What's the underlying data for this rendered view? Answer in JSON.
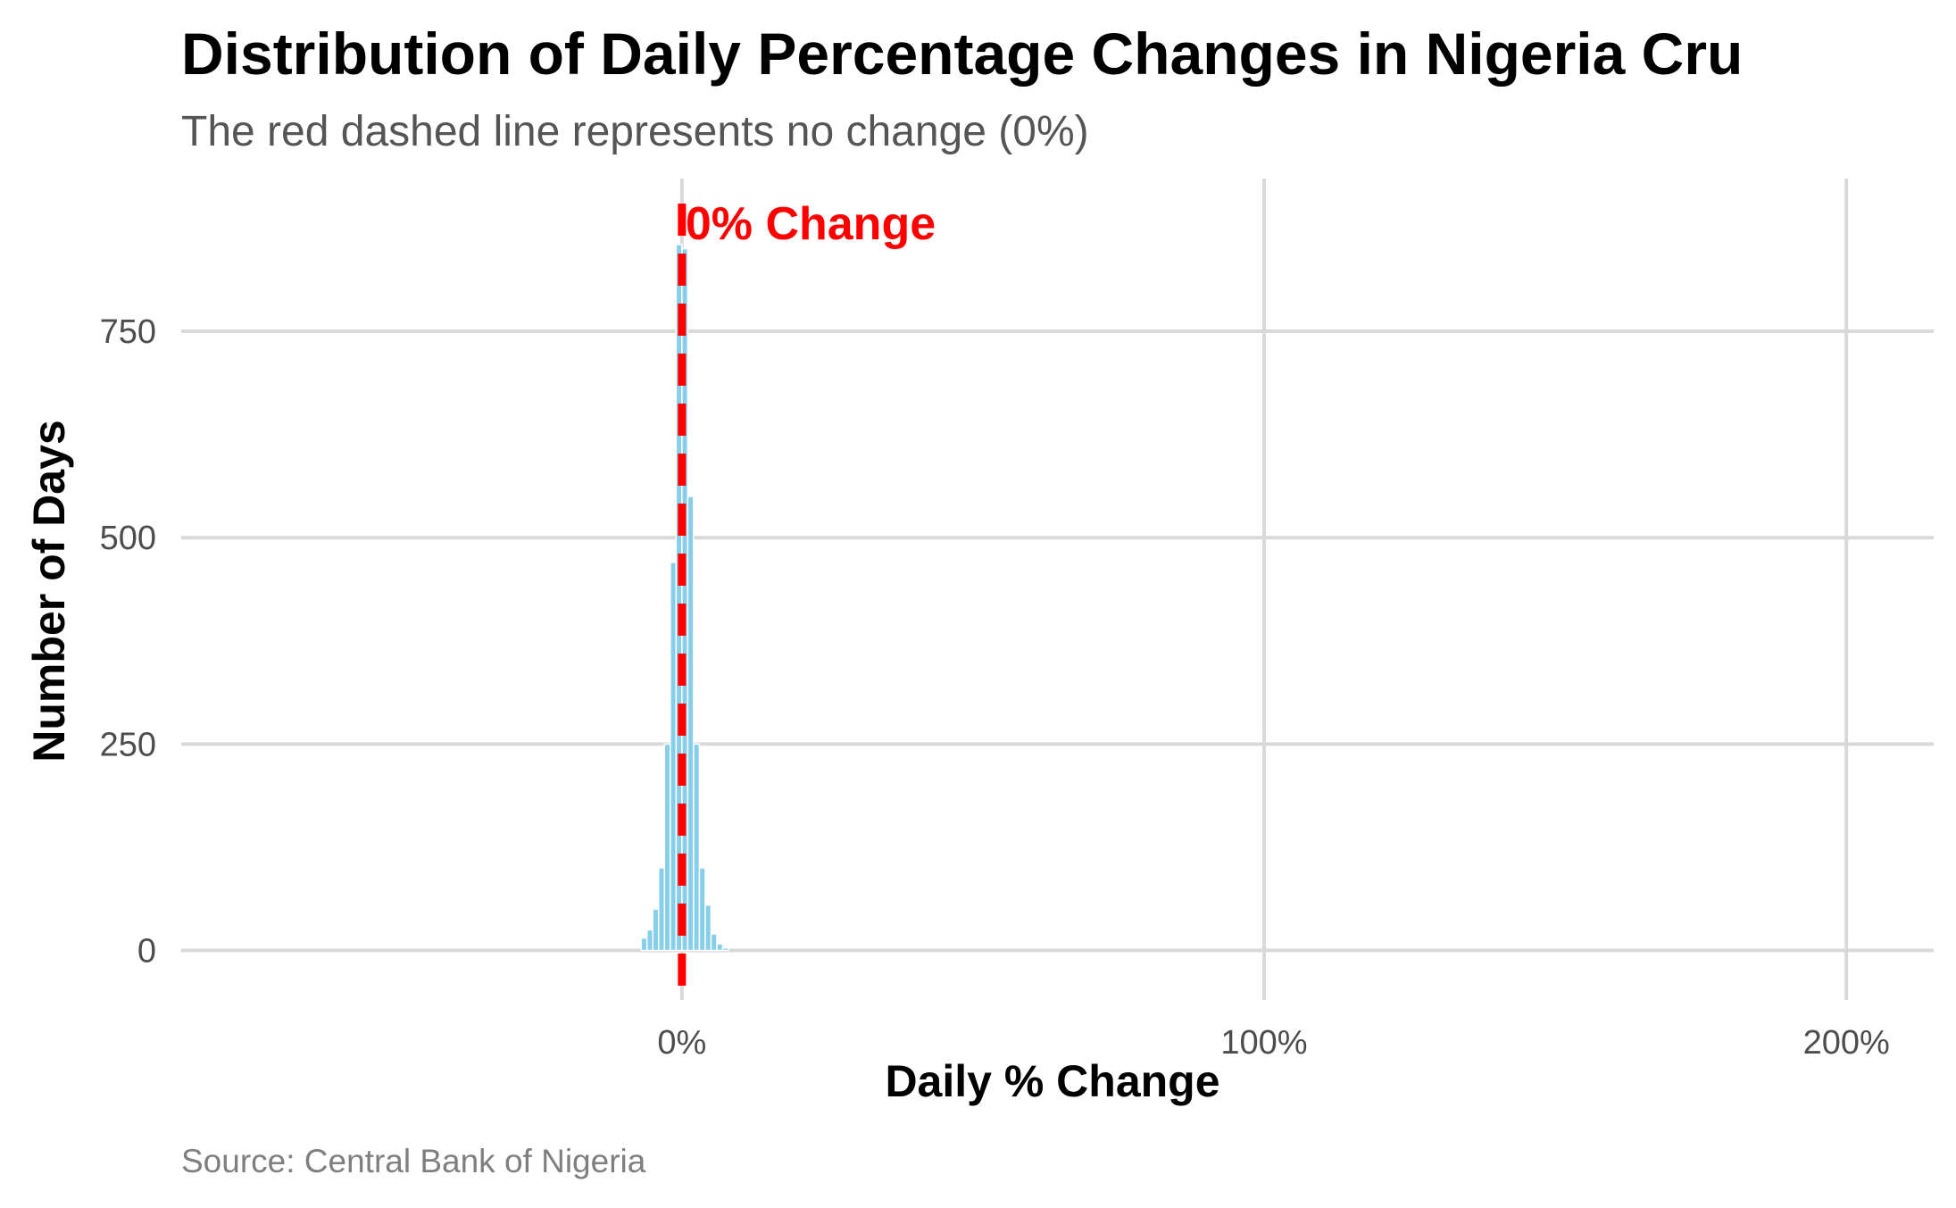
{
  "chart_data": {
    "type": "bar",
    "title": "Distribution of Daily Percentage Changes in Nigeria Cru",
    "subtitle": "The red dashed line represents no change (0%)",
    "caption": "Source: Central Bank of Nigeria",
    "xlabel": "Daily % Change",
    "ylabel": "Number of Days",
    "xlim": [
      -86,
      215
    ],
    "ylim": [
      -60,
      935
    ],
    "x_ticks": [
      {
        "value": 0,
        "label": "0%"
      },
      {
        "value": 100,
        "label": "100%"
      },
      {
        "value": 200,
        "label": "200%"
      }
    ],
    "y_ticks": [
      {
        "value": 0,
        "label": "0"
      },
      {
        "value": 250,
        "label": "250"
      },
      {
        "value": 500,
        "label": "500"
      },
      {
        "value": 750,
        "label": "750"
      }
    ],
    "grid": true,
    "bin_width": 1,
    "bins": [
      {
        "x": -6.5,
        "count": 15
      },
      {
        "x": -5.5,
        "count": 25
      },
      {
        "x": -4.5,
        "count": 50
      },
      {
        "x": -3.5,
        "count": 100
      },
      {
        "x": -2.5,
        "count": 250
      },
      {
        "x": -1.5,
        "count": 470
      },
      {
        "x": -0.5,
        "count": 855
      },
      {
        "x": 0.5,
        "count": 850
      },
      {
        "x": 1.5,
        "count": 550
      },
      {
        "x": 2.5,
        "count": 250
      },
      {
        "x": 3.5,
        "count": 100
      },
      {
        "x": 4.5,
        "count": 55
      },
      {
        "x": 5.5,
        "count": 20
      },
      {
        "x": 6.5,
        "count": 8
      },
      {
        "x": 7.5,
        "count": 3
      }
    ],
    "bar_color": "#87ceeb",
    "reference_line": {
      "x": 0,
      "color": "#ff0000",
      "style": "dashed",
      "label": "0% Change"
    }
  }
}
